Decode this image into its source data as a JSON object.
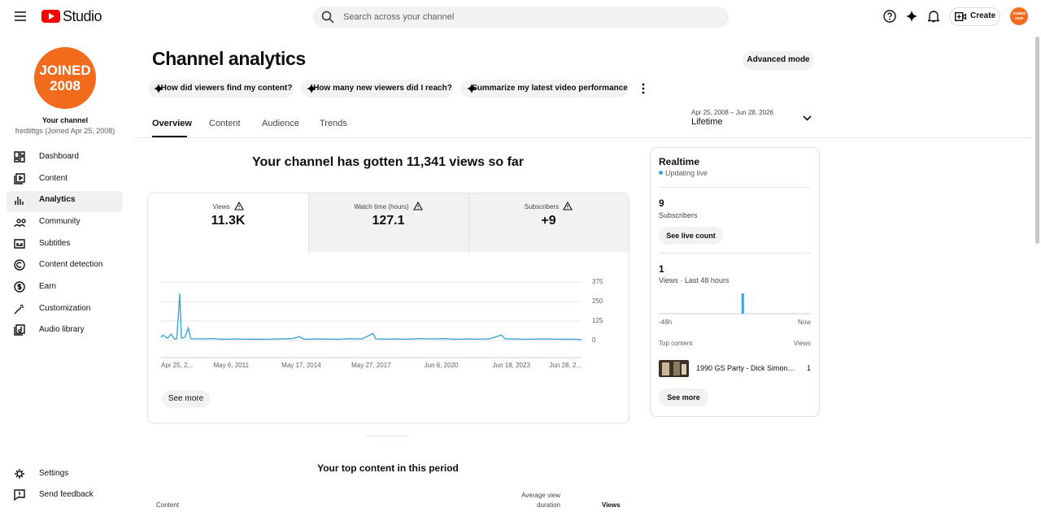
{
  "header": {
    "logo": "Studio",
    "search_placeholder": "Search across your channel",
    "create": "Create",
    "avatar": "JOINED 2008"
  },
  "sidebar": {
    "avatar_line1": "JOINED",
    "avatar_line2": "2008",
    "channel_label": "Your channel",
    "channel_sub": "fredlittgs (Joined Apr 25, 2008)",
    "nav": [
      "Dashboard",
      "Content",
      "Analytics",
      "Community",
      "Subtitles",
      "Content detection",
      "Earn",
      "Customization",
      "Audio library"
    ],
    "footer_nav": [
      "Settings",
      "Send feedback"
    ]
  },
  "page": {
    "title": "Channel analytics",
    "advanced": "Advanced mode",
    "prompts": [
      "How did viewers find my content?",
      "How many new viewers did I reach?",
      "Summarize my latest video performance"
    ],
    "tabs": [
      "Overview",
      "Content",
      "Audience",
      "Trends"
    ],
    "date_range": "Apr 25, 2008 – Jun 28, 2026",
    "period": "Lifetime",
    "summary": "Your channel has gotten 11,341 views so far",
    "metrics": [
      {
        "label": "Views",
        "value": "11.3K"
      },
      {
        "label": "Watch time (hours)",
        "value": "127.1"
      },
      {
        "label": "Subscribers",
        "value": "+9"
      }
    ],
    "see_more": "See more",
    "top_content_title": "Your top content in this period",
    "table_headers": [
      "Content",
      "Average view",
      "duration",
      "Views"
    ]
  },
  "realtime": {
    "title": "Realtime",
    "status": "Updating live",
    "subscribers": "9",
    "subscribers_label": "Subscribers",
    "live_button": "See live count",
    "views": "1",
    "views_label": "Views · Last 48 hours",
    "top_content": "Top content",
    "views_header": "Views",
    "video_title": "1990 GS Party - Dick Simon…",
    "video_views": "1",
    "see_more": "See more"
  },
  "chart_data": [
    {
      "type": "line",
      "color": "#3ba5d8",
      "x": [
        2008.32,
        2008.4,
        2008.6,
        2008.75,
        2008.9,
        2009.0,
        2009.13,
        2009.2,
        2009.35,
        2009.5,
        2009.6,
        2010,
        2010.5,
        2011,
        2011.5,
        2012,
        2012.5,
        2013,
        2013.5,
        2014,
        2014.3,
        2014.5,
        2015,
        2015.5,
        2016,
        2016.5,
        2017,
        2017.48,
        2017.6,
        2018,
        2018.5,
        2019,
        2019.5,
        2020,
        2020.5,
        2021,
        2021.5,
        2022,
        2022.5,
        2023.02,
        2023.2,
        2023.5,
        2024,
        2024.5,
        2025,
        2025.5,
        2026,
        2026.49
      ],
      "values": [
        20,
        35,
        15,
        40,
        10,
        12,
        300,
        15,
        20,
        80,
        12,
        10,
        12,
        8,
        10,
        8,
        9,
        8,
        10,
        12,
        25,
        8,
        10,
        9,
        8,
        12,
        10,
        45,
        10,
        9,
        10,
        8,
        12,
        10,
        12,
        8,
        10,
        9,
        10,
        35,
        10,
        10,
        8,
        9,
        10,
        8,
        9,
        6
      ],
      "xlim": [
        2008.32,
        2026.49
      ],
      "xticks": [
        {
          "value": 2008.32,
          "label": "Apr 25, 2..."
        },
        {
          "value": 2011.35,
          "label": "May 6, 2011"
        },
        {
          "value": 2014.38,
          "label": "May 17, 2014"
        },
        {
          "value": 2017.4,
          "label": "May 27, 2017"
        },
        {
          "value": 2020.43,
          "label": "Jun 6, 2020"
        },
        {
          "value": 2023.46,
          "label": "Jun 18, 2023"
        },
        {
          "value": 2026.49,
          "label": "Jun 28, 2..."
        }
      ],
      "ylim": [
        0,
        375
      ],
      "yticks": [
        0,
        125,
        250,
        375
      ],
      "grid": true
    },
    {
      "type": "bar",
      "color": "#3ba5d8",
      "values": [
        0,
        0,
        0,
        0,
        0,
        0,
        0,
        0,
        0,
        0,
        0,
        0,
        0,
        0,
        0,
        0,
        0,
        0,
        0,
        0,
        0,
        0,
        0,
        0,
        0,
        0,
        1,
        0,
        0,
        0,
        0,
        0,
        0,
        0,
        0,
        0,
        0,
        0,
        0,
        0,
        0,
        0,
        0,
        0,
        0,
        0,
        0,
        0
      ],
      "ylim": [
        0,
        1
      ],
      "x_start_label": "-48h",
      "x_end_label": "Now"
    }
  ]
}
